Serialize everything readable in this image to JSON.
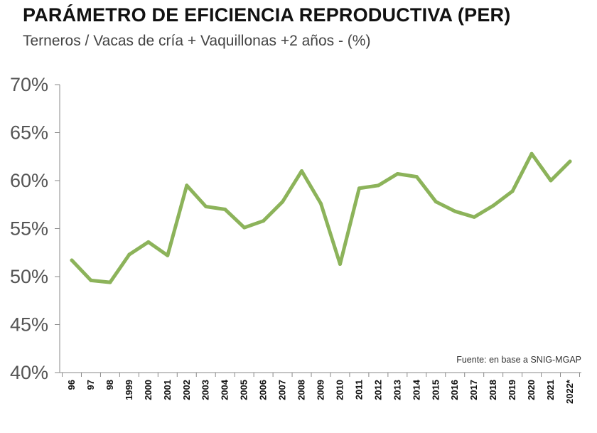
{
  "chart_data": {
    "type": "line",
    "title": "PARÁMETRO DE EFICIENCIA REPRODUCTIVA (PER)",
    "subtitle": "Terneros / Vacas de cría + Vaquillonas +2 años - (%)",
    "source": "Fuente: en base a SNIG-MGAP",
    "xlabel": "",
    "ylabel": "",
    "ylim": [
      40,
      70
    ],
    "yticks": [
      40,
      45,
      50,
      55,
      60,
      65,
      70
    ],
    "ytick_labels": [
      "40%",
      "45%",
      "50%",
      "55%",
      "60%",
      "65%",
      "70%"
    ],
    "categories": [
      "96",
      "97",
      "98",
      "1999",
      "2000",
      "2001",
      "2002",
      "2003",
      "2004",
      "2005",
      "2006",
      "2007",
      "2008",
      "2009",
      "2010",
      "2011",
      "2012",
      "2013",
      "2014",
      "2015",
      "2016",
      "2017",
      "2018",
      "2019",
      "2020",
      "2021",
      "2022*"
    ],
    "series": [
      {
        "name": "PER",
        "color": "#8cb35a",
        "values": [
          51.7,
          49.6,
          49.4,
          52.3,
          53.6,
          52.2,
          59.5,
          57.3,
          57.0,
          55.1,
          55.8,
          57.8,
          61.0,
          57.6,
          51.3,
          59.2,
          59.5,
          60.7,
          60.4,
          57.8,
          56.8,
          56.2,
          57.4,
          58.9,
          62.8,
          60.0,
          62.0
        ]
      }
    ],
    "grid": false,
    "legend": "none"
  }
}
